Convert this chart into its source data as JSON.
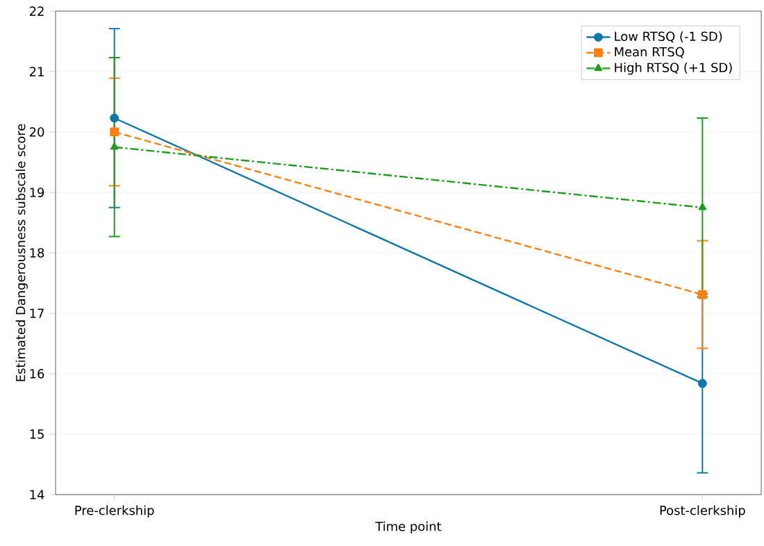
{
  "chart_data": {
    "type": "line",
    "xlabel": "Time point",
    "ylabel": "Estimated Dangerousness subscale score",
    "categories": [
      "Pre-clerkship",
      "Post-clerkship"
    ],
    "ylim": [
      14,
      22
    ],
    "yticks": [
      14,
      15,
      16,
      17,
      18,
      19,
      20,
      21,
      22
    ],
    "grid": "y",
    "legend": "top right",
    "series": [
      {
        "name": "Low RTSQ (-1 SD)",
        "color": "#0f77aa",
        "values": [
          20.23,
          15.84
        ],
        "errors": [
          1.48,
          1.48
        ],
        "marker": "circle",
        "line_style": "solid"
      },
      {
        "name": "Mean RTSQ",
        "color": "#ff7f0e",
        "values": [
          20.0,
          17.31
        ],
        "errors": [
          0.89,
          0.89
        ],
        "marker": "square",
        "line_style": "dashed"
      },
      {
        "name": "High RTSQ (+1 SD)",
        "color": "#1a9e1a",
        "values": [
          19.75,
          18.75
        ],
        "errors": [
          1.48,
          1.48
        ],
        "marker": "triangle",
        "line_style": "dashdot"
      }
    ]
  }
}
